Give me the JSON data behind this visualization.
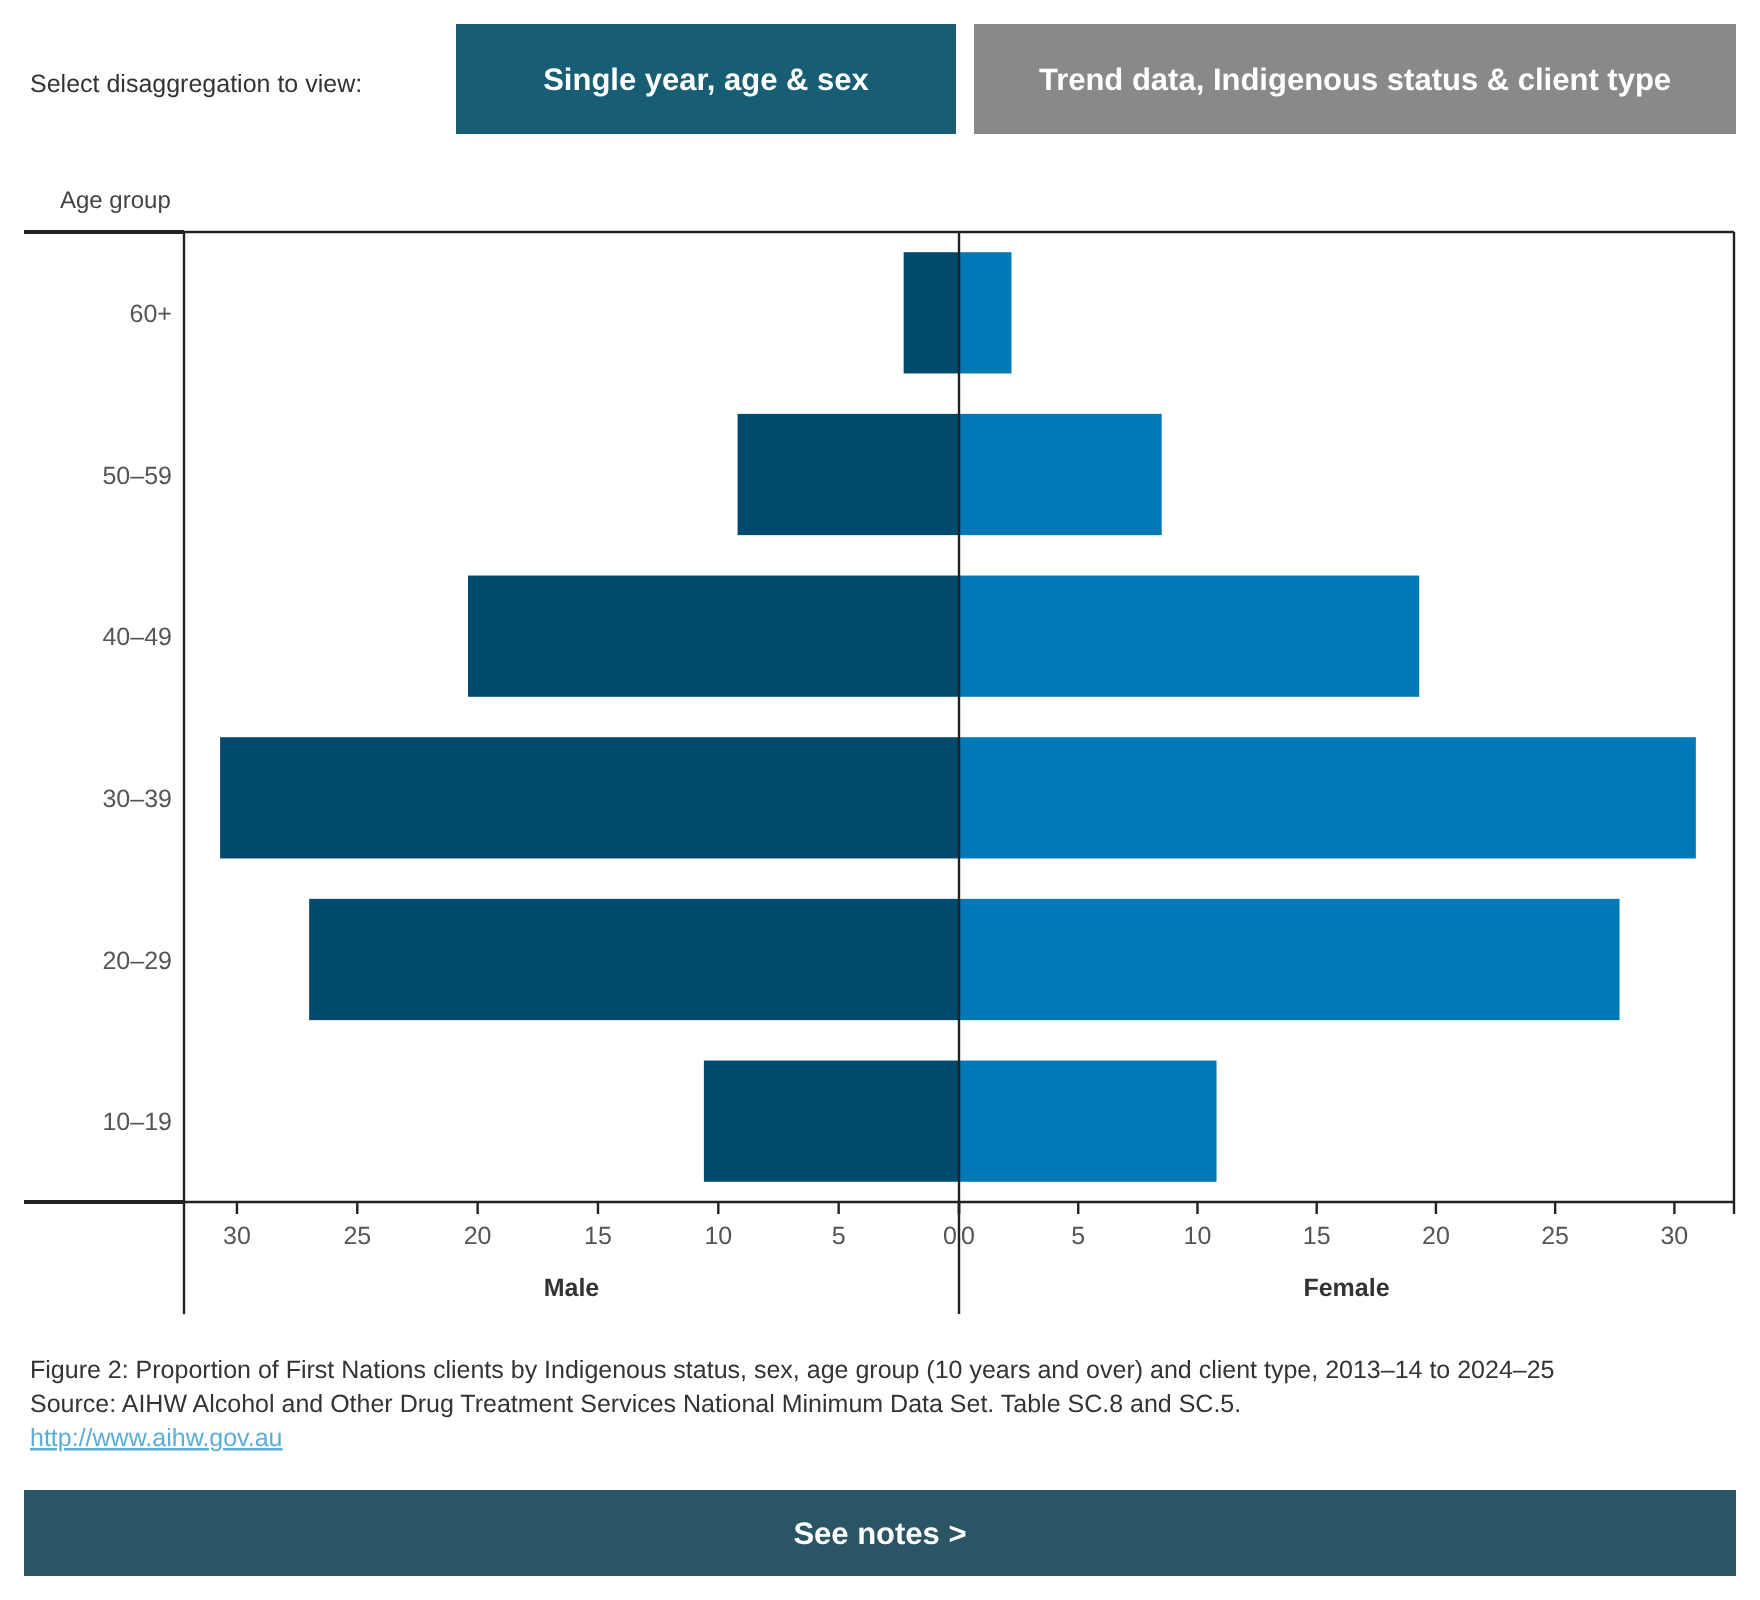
{
  "chart_data": [
    {
      "type": "bar",
      "orientation": "horizontal",
      "ylabel": "Age group",
      "xlabel": "Male",
      "categories": [
        "60+",
        "50–59",
        "40–49",
        "30–39",
        "20–29",
        "10–19"
      ],
      "values": [
        2.3,
        9.2,
        20.4,
        30.7,
        27.0,
        10.6
      ],
      "color": "#004a6d",
      "xlim": [
        32.2,
        0
      ],
      "xticks": [
        30,
        25,
        20,
        15,
        10,
        5,
        0
      ],
      "legend": false,
      "grid": false,
      "annotations": [
        "Select disaggregation to view:",
        "Single year, age & sex",
        "Trend data, Indigenous status & client type",
        "Figure 2: Proportion of First Nations clients by Indigenous status, sex, age group (10 years and over) and client type, 2013–14 to 2024–25",
        "Source: AIHW Alcohol and Other Drug Treatment Services National Minimum Data Set. Table SC.8 and SC.5.",
        "http://www.aihw.gov.au",
        "See notes >"
      ]
    },
    {
      "type": "bar",
      "orientation": "horizontal",
      "xlabel": "Female",
      "categories": [
        "60+",
        "50–59",
        "40–49",
        "30–39",
        "20–29",
        "10–19"
      ],
      "values": [
        2.2,
        8.5,
        19.3,
        30.9,
        27.7,
        10.8
      ],
      "color": "#0079b6",
      "xlim": [
        0,
        32.5
      ],
      "xticks": [
        0,
        5,
        10,
        15,
        20,
        25,
        30
      ],
      "tick_labels": "x",
      "legend": false,
      "grid": false
    }
  ]
}
